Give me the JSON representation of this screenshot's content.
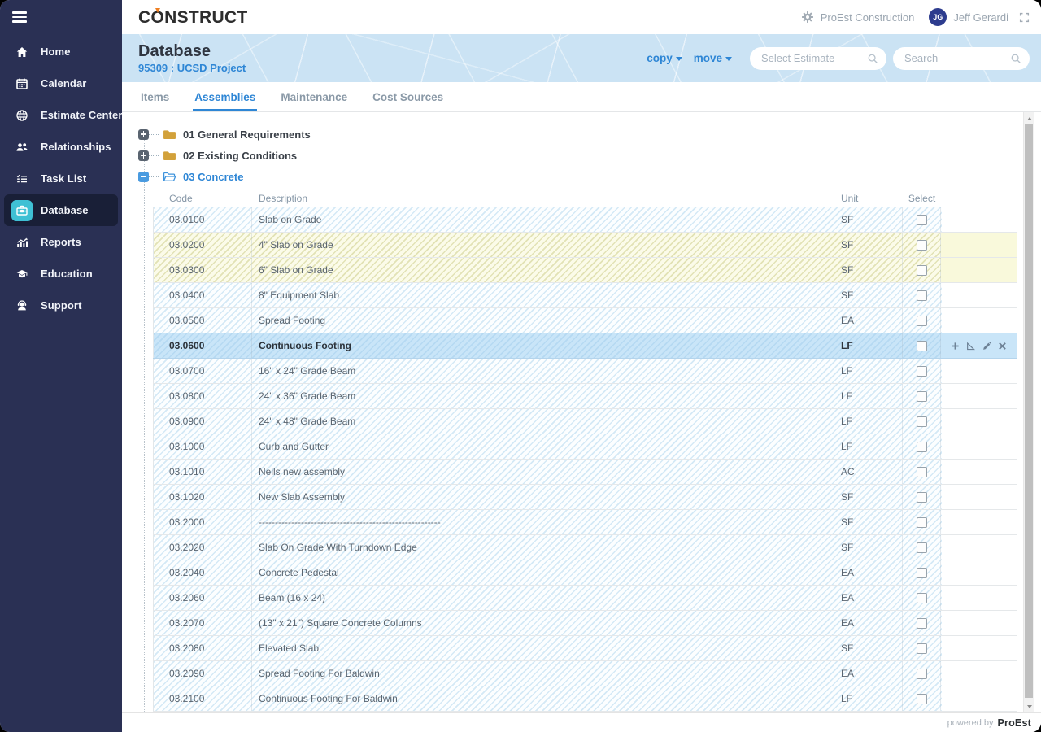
{
  "app": {
    "logo": "CONSTRUCT",
    "footer": {
      "powered_by": "powered by",
      "brand": "ProEst"
    }
  },
  "topbar": {
    "company": "ProEst Construction",
    "user_initials": "JG",
    "user_name": "Jeff Gerardi"
  },
  "sidebar": {
    "items": [
      {
        "id": "home",
        "label": "Home",
        "icon": "home-icon",
        "active": false
      },
      {
        "id": "calendar",
        "label": "Calendar",
        "icon": "calendar-icon",
        "active": false
      },
      {
        "id": "estimate-center",
        "label": "Estimate Center",
        "icon": "estimate-center-icon",
        "active": false
      },
      {
        "id": "relationships",
        "label": "Relationships",
        "icon": "relationships-icon",
        "active": false
      },
      {
        "id": "task-list",
        "label": "Task List",
        "icon": "task-list-icon",
        "active": false
      },
      {
        "id": "database",
        "label": "Database",
        "icon": "database-icon",
        "active": true
      },
      {
        "id": "reports",
        "label": "Reports",
        "icon": "reports-icon",
        "active": false
      },
      {
        "id": "education",
        "label": "Education",
        "icon": "education-icon",
        "active": false
      },
      {
        "id": "support",
        "label": "Support",
        "icon": "support-icon",
        "active": false
      }
    ]
  },
  "page_header": {
    "title": "Database",
    "subtitle": "95309 : UCSD Project",
    "copy_label": "copy",
    "move_label": "move",
    "select_estimate_placeholder": "Select Estimate",
    "search_placeholder": "Search"
  },
  "tabs": [
    {
      "label": "Items",
      "active": false
    },
    {
      "label": "Assemblies",
      "active": true
    },
    {
      "label": "Maintenance",
      "active": false
    },
    {
      "label": "Cost Sources",
      "active": false
    }
  ],
  "tree": [
    {
      "label": "01 General Requirements",
      "expanded": false
    },
    {
      "label": "02 Existing Conditions",
      "expanded": false
    },
    {
      "label": "03 Concrete",
      "expanded": true
    }
  ],
  "assembly_table": {
    "columns": [
      "Code",
      "Description",
      "Unit",
      "Select"
    ],
    "row_actions": [
      "add",
      "measure",
      "edit",
      "delete"
    ],
    "rows": [
      {
        "code": "03.0100",
        "description": "Slab on Grade",
        "unit": "SF",
        "state": "default",
        "checked": false
      },
      {
        "code": "03.0200",
        "description": "4\" Slab on Grade",
        "unit": "SF",
        "state": "yellow",
        "checked": false
      },
      {
        "code": "03.0300",
        "description": "6\" Slab on Grade",
        "unit": "SF",
        "state": "yellow",
        "checked": false
      },
      {
        "code": "03.0400",
        "description": "8\" Equipment Slab",
        "unit": "SF",
        "state": "default",
        "checked": false
      },
      {
        "code": "03.0500",
        "description": "Spread Footing",
        "unit": "EA",
        "state": "default",
        "checked": false
      },
      {
        "code": "03.0600",
        "description": "Continuous Footing",
        "unit": "LF",
        "state": "selected",
        "checked": false
      },
      {
        "code": "03.0700",
        "description": "16\" x 24\" Grade Beam",
        "unit": "LF",
        "state": "default",
        "checked": false
      },
      {
        "code": "03.0800",
        "description": "24\" x 36\" Grade Beam",
        "unit": "LF",
        "state": "default",
        "checked": false
      },
      {
        "code": "03.0900",
        "description": "24\" x 48\" Grade Beam",
        "unit": "LF",
        "state": "default",
        "checked": false
      },
      {
        "code": "03.1000",
        "description": "Curb and Gutter",
        "unit": "LF",
        "state": "default",
        "checked": false
      },
      {
        "code": "03.1010",
        "description": "Neils new assembly",
        "unit": "AC",
        "state": "default",
        "checked": false
      },
      {
        "code": "03.1020",
        "description": "New Slab Assembly",
        "unit": "SF",
        "state": "default",
        "checked": false
      },
      {
        "code": "03.2000",
        "description": "--------------------------------------------------------",
        "unit": "SF",
        "state": "default",
        "checked": false
      },
      {
        "code": "03.2020",
        "description": "Slab On Grade With Turndown Edge",
        "unit": "SF",
        "state": "default",
        "checked": false
      },
      {
        "code": "03.2040",
        "description": "Concrete Pedestal",
        "unit": "EA",
        "state": "default",
        "checked": false
      },
      {
        "code": "03.2060",
        "description": "Beam (16 x 24)",
        "unit": "EA",
        "state": "default",
        "checked": false
      },
      {
        "code": "03.2070",
        "description": "(13\" x 21\") Square Concrete Columns",
        "unit": "EA",
        "state": "default",
        "checked": false
      },
      {
        "code": "03.2080",
        "description": "Elevated Slab",
        "unit": "SF",
        "state": "default",
        "checked": false
      },
      {
        "code": "03.2090",
        "description": "Spread Footing For Baldwin",
        "unit": "EA",
        "state": "default",
        "checked": false
      },
      {
        "code": "03.2100",
        "description": "Continuous Footing For Baldwin",
        "unit": "LF",
        "state": "default",
        "checked": false
      }
    ]
  },
  "colors": {
    "accent_blue": "#2e86d5",
    "sidebar_bg": "#2a3054",
    "active_icon_cyan": "#3fc0d4",
    "selected_row": "#c9e5f8",
    "yellow_row": "#fbfbe9",
    "header_band": "#cbe3f4",
    "logo_orange": "#ee7f22"
  }
}
